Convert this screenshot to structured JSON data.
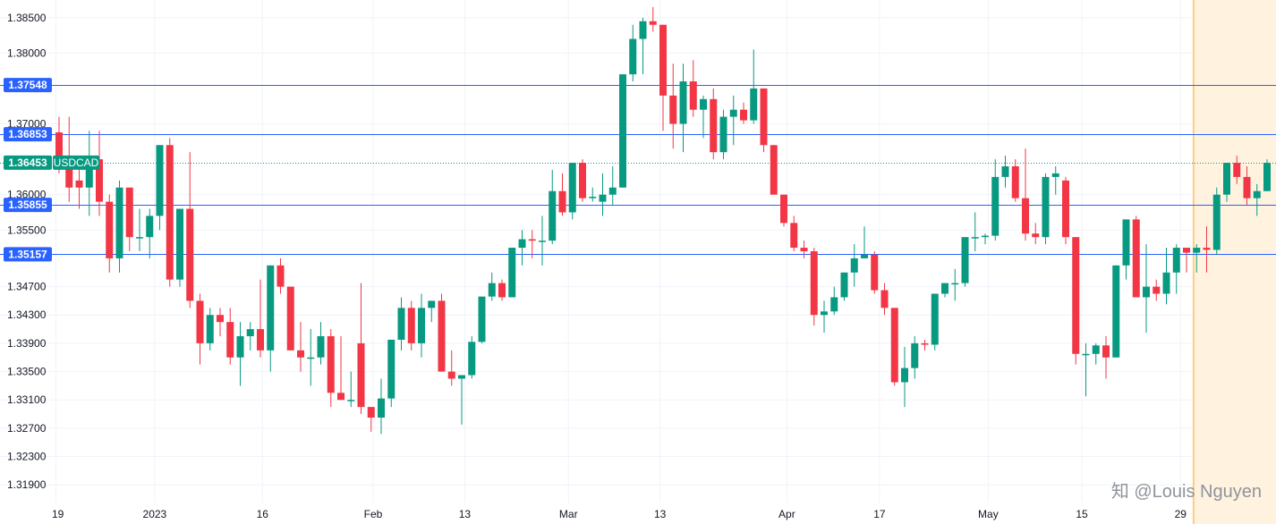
{
  "chart_data": {
    "type": "candlestick",
    "symbol": "USDCAD",
    "y_range": [
      1.3165,
      1.3875
    ],
    "y_ticks": [
      "1.38500",
      "1.38000",
      "1.37000",
      "1.36000",
      "1.35500",
      "1.34700",
      "1.34300",
      "1.33900",
      "1.33500",
      "1.33100",
      "1.32700",
      "1.32300",
      "1.31900"
    ],
    "x_ticks": [
      {
        "label": "19",
        "bar": -0.3
      },
      {
        "label": "2023",
        "bar": 9.5
      },
      {
        "label": "16",
        "bar": 20.2
      },
      {
        "label": "Feb",
        "bar": 31.2
      },
      {
        "label": "13",
        "bar": 40.3
      },
      {
        "label": "Mar",
        "bar": 50.6
      },
      {
        "label": "13",
        "bar": 59.7
      },
      {
        "label": "Apr",
        "bar": 72.3
      },
      {
        "label": "17",
        "bar": 81.5
      },
      {
        "label": "May",
        "bar": 92.3
      },
      {
        "label": "15",
        "bar": 101.6
      },
      {
        "label": "29",
        "bar": 111.4
      }
    ],
    "horizontal_levels": [
      {
        "value": "1.37548",
        "y": 1.37548,
        "color": "#2962ff"
      },
      {
        "value": "1.36853",
        "y": 1.36853,
        "color": "#2962ff"
      },
      {
        "value": "1.35855",
        "y": 1.35855,
        "color": "#2962ff"
      },
      {
        "value": "1.35157",
        "y": 1.35157,
        "color": "#2962ff"
      }
    ],
    "last_price": {
      "value": "1.36453",
      "y": 1.36453,
      "color": "#089981"
    },
    "highlight_from_bar": 112.7,
    "colors": {
      "up": "#089981",
      "down": "#f23645",
      "level_line": "#2962ff",
      "highlight_fill": "#fff3e0",
      "highlight_edge": "#ffcc80",
      "grid": "#f0f3fa"
    },
    "candles": [
      [
        1.3688,
        1.371,
        1.363,
        1.365
      ],
      [
        1.364,
        1.371,
        1.359,
        1.361
      ],
      [
        1.362,
        1.365,
        1.358,
        1.361
      ],
      [
        1.361,
        1.369,
        1.357,
        1.364
      ],
      [
        1.365,
        1.369,
        1.357,
        1.359
      ],
      [
        1.359,
        1.36,
        1.349,
        1.351
      ],
      [
        1.351,
        1.362,
        1.349,
        1.361
      ],
      [
        1.361,
        1.361,
        1.352,
        1.354
      ],
      [
        1.354,
        1.358,
        1.352,
        1.354
      ],
      [
        1.354,
        1.358,
        1.351,
        1.357
      ],
      [
        1.357,
        1.367,
        1.355,
        1.367
      ],
      [
        1.367,
        1.368,
        1.347,
        1.348
      ],
      [
        1.348,
        1.358,
        1.347,
        1.358
      ],
      [
        1.358,
        1.366,
        1.344,
        1.345
      ],
      [
        1.345,
        1.346,
        1.336,
        1.339
      ],
      [
        1.339,
        1.344,
        1.338,
        1.343
      ],
      [
        1.343,
        1.344,
        1.34,
        1.342
      ],
      [
        1.342,
        1.344,
        1.336,
        1.337
      ],
      [
        1.337,
        1.342,
        1.333,
        1.34
      ],
      [
        1.34,
        1.342,
        1.338,
        1.341
      ],
      [
        1.341,
        1.348,
        1.337,
        1.338
      ],
      [
        1.338,
        1.35,
        1.335,
        1.35
      ],
      [
        1.35,
        1.351,
        1.346,
        1.347
      ],
      [
        1.347,
        1.347,
        1.338,
        1.338
      ],
      [
        1.338,
        1.342,
        1.335,
        1.337
      ],
      [
        1.337,
        1.341,
        1.333,
        1.337
      ],
      [
        1.337,
        1.342,
        1.336,
        1.34
      ],
      [
        1.34,
        1.341,
        1.33,
        1.332
      ],
      [
        1.332,
        1.34,
        1.331,
        1.331
      ],
      [
        1.331,
        1.335,
        1.33,
        1.331
      ],
      [
        1.339,
        1.3475,
        1.329,
        1.33
      ],
      [
        1.33,
        1.33,
        1.3265,
        1.3285
      ],
      [
        1.3285,
        1.334,
        1.3262,
        1.3312
      ],
      [
        1.3312,
        1.3395,
        1.33,
        1.3395
      ],
      [
        1.3395,
        1.3455,
        1.338,
        1.344
      ],
      [
        1.344,
        1.345,
        1.338,
        1.339
      ],
      [
        1.339,
        1.346,
        1.337,
        1.344
      ],
      [
        1.344,
        1.345,
        1.342,
        1.345
      ],
      [
        1.345,
        1.346,
        1.335,
        1.335
      ],
      [
        1.335,
        1.338,
        1.333,
        1.334
      ],
      [
        1.334,
        1.3345,
        1.3275,
        1.3345
      ],
      [
        1.3345,
        1.34,
        1.334,
        1.3392
      ],
      [
        1.3392,
        1.3456,
        1.339,
        1.3456
      ],
      [
        1.3456,
        1.349,
        1.345,
        1.3475
      ],
      [
        1.3475,
        1.348,
        1.345,
        1.3455
      ],
      [
        1.3455,
        1.3525,
        1.3455,
        1.3525
      ],
      [
        1.3525,
        1.355,
        1.35,
        1.3537
      ],
      [
        1.3537,
        1.355,
        1.351,
        1.3535
      ],
      [
        1.3535,
        1.357,
        1.35,
        1.3535
      ],
      [
        1.3535,
        1.3635,
        1.353,
        1.3605
      ],
      [
        1.3605,
        1.363,
        1.357,
        1.3575
      ],
      [
        1.3575,
        1.3645,
        1.3565,
        1.3645
      ],
      [
        1.3645,
        1.365,
        1.359,
        1.3595
      ],
      [
        1.3595,
        1.361,
        1.359,
        1.3597
      ],
      [
        1.359,
        1.363,
        1.357,
        1.36
      ],
      [
        1.36,
        1.364,
        1.3585,
        1.361
      ],
      [
        1.361,
        1.377,
        1.361,
        1.377
      ],
      [
        1.377,
        1.384,
        1.376,
        1.382
      ],
      [
        1.382,
        1.385,
        1.377,
        1.3845
      ],
      [
        1.3845,
        1.3865,
        1.383,
        1.384
      ],
      [
        1.384,
        1.384,
        1.369,
        1.374
      ],
      [
        1.374,
        1.3785,
        1.3665,
        1.37
      ],
      [
        1.37,
        1.3785,
        1.366,
        1.376
      ],
      [
        1.376,
        1.379,
        1.371,
        1.372
      ],
      [
        1.372,
        1.374,
        1.368,
        1.3735
      ],
      [
        1.3735,
        1.375,
        1.365,
        1.366
      ],
      [
        1.366,
        1.372,
        1.365,
        1.371
      ],
      [
        1.371,
        1.374,
        1.367,
        1.372
      ],
      [
        1.372,
        1.373,
        1.37,
        1.3705
      ],
      [
        1.3705,
        1.3805,
        1.37,
        1.375
      ],
      [
        1.375,
        1.375,
        1.366,
        1.367
      ],
      [
        1.367,
        1.367,
        1.36,
        1.36
      ],
      [
        1.36,
        1.36,
        1.3555,
        1.356
      ],
      [
        1.356,
        1.357,
        1.352,
        1.3525
      ],
      [
        1.3525,
        1.3535,
        1.351,
        1.352
      ],
      [
        1.352,
        1.3525,
        1.3415,
        1.343
      ],
      [
        1.343,
        1.345,
        1.3405,
        1.3435
      ],
      [
        1.3435,
        1.347,
        1.343,
        1.3455
      ],
      [
        1.3455,
        1.349,
        1.345,
        1.349
      ],
      [
        1.349,
        1.353,
        1.347,
        1.351
      ],
      [
        1.351,
        1.3555,
        1.351,
        1.3515
      ],
      [
        1.3515,
        1.352,
        1.346,
        1.3465
      ],
      [
        1.3465,
        1.3475,
        1.343,
        1.344
      ],
      [
        1.344,
        1.344,
        1.333,
        1.3335
      ],
      [
        1.3335,
        1.3385,
        1.33,
        1.3355
      ],
      [
        1.3355,
        1.34,
        1.334,
        1.339
      ],
      [
        1.339,
        1.3395,
        1.338,
        1.3388
      ],
      [
        1.3388,
        1.346,
        1.338,
        1.346
      ],
      [
        1.346,
        1.3475,
        1.3455,
        1.3475
      ],
      [
        1.3475,
        1.3495,
        1.345,
        1.3475
      ],
      [
        1.3475,
        1.354,
        1.347,
        1.354
      ],
      [
        1.354,
        1.3575,
        1.352,
        1.354
      ],
      [
        1.354,
        1.3545,
        1.353,
        1.3542
      ],
      [
        1.3542,
        1.365,
        1.3535,
        1.3625
      ],
      [
        1.3625,
        1.3655,
        1.361,
        1.364
      ],
      [
        1.364,
        1.365,
        1.359,
        1.3595
      ],
      [
        1.3595,
        1.3665,
        1.3535,
        1.3545
      ],
      [
        1.3545,
        1.356,
        1.353,
        1.354
      ],
      [
        1.354,
        1.363,
        1.353,
        1.3625
      ],
      [
        1.3625,
        1.364,
        1.36,
        1.363
      ],
      [
        1.362,
        1.3625,
        1.353,
        1.354
      ],
      [
        1.354,
        1.354,
        1.336,
        1.3375
      ],
      [
        1.3375,
        1.339,
        1.3315,
        1.3375
      ],
      [
        1.3375,
        1.339,
        1.336,
        1.3387
      ],
      [
        1.3387,
        1.34,
        1.334,
        1.337
      ],
      [
        1.337,
        1.35,
        1.337,
        1.35
      ],
      [
        1.35,
        1.3565,
        1.348,
        1.3565
      ],
      [
        1.3565,
        1.357,
        1.3455,
        1.3455
      ],
      [
        1.3455,
        1.353,
        1.3405,
        1.347
      ],
      [
        1.347,
        1.348,
        1.345,
        1.346
      ],
      [
        1.346,
        1.3525,
        1.3445,
        1.349
      ],
      [
        1.349,
        1.353,
        1.346,
        1.3525
      ],
      [
        1.3525,
        1.352,
        1.349,
        1.3518
      ],
      [
        1.3518,
        1.353,
        1.349,
        1.3525
      ],
      [
        1.3525,
        1.3555,
        1.349,
        1.3522
      ],
      [
        1.3522,
        1.361,
        1.3515,
        1.36
      ],
      [
        1.36,
        1.3645,
        1.359,
        1.3645
      ],
      [
        1.3645,
        1.3655,
        1.3615,
        1.3625
      ],
      [
        1.3625,
        1.364,
        1.3585,
        1.3595
      ],
      [
        1.3595,
        1.3615,
        1.357,
        1.3605
      ],
      [
        1.3605,
        1.365,
        1.3605,
        1.3645
      ]
    ]
  },
  "watermark": "知 @Louis Nguyen"
}
